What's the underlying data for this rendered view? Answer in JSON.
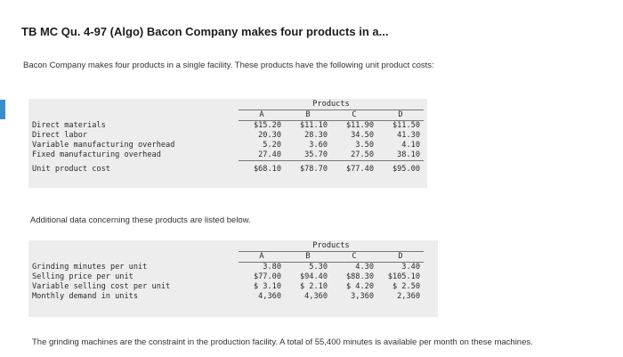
{
  "title": "TB MC Qu. 4-97 (Algo) Bacon Company makes four products in a...",
  "intro": "Bacon Company makes four products in a single facility. These products have the following unit product costs:",
  "table1": {
    "group_header": "Products",
    "columns": [
      "A",
      "B",
      "C",
      "D"
    ],
    "rows": [
      {
        "label": "Direct materials",
        "values": [
          "$15.20",
          "$11.10",
          "$11.90",
          "$11.50"
        ]
      },
      {
        "label": "Direct labor",
        "values": [
          "20.30",
          "28.30",
          "34.50",
          "41.30"
        ]
      },
      {
        "label": "Variable manufacturing overhead",
        "values": [
          "5.20",
          "3.60",
          "3.50",
          "4.10"
        ]
      },
      {
        "label": "Fixed manufacturing overhead",
        "values": [
          "27.40",
          "35.70",
          "27.50",
          "38.10"
        ]
      },
      {
        "label": "Unit product cost",
        "values": [
          "$68.10",
          "$78.70",
          "$77.40",
          "$95.00"
        ]
      }
    ]
  },
  "additional": "Additional data concerning these products are listed below.",
  "table2": {
    "group_header": "Products",
    "columns": [
      "A",
      "B",
      "C",
      "D"
    ],
    "rows": [
      {
        "label": "Grinding minutes per unit",
        "values": [
          "3.80",
          "5.30",
          "4.30",
          "3.40"
        ]
      },
      {
        "label": "Selling price per unit",
        "values": [
          "$77.00",
          "$94.40",
          "$88.30",
          "$105.10"
        ]
      },
      {
        "label": "Variable selling cost per unit",
        "values": [
          "$ 3.10",
          "$ 2.10",
          "$ 4.20",
          "$  2.50"
        ]
      },
      {
        "label": "Monthly demand in units",
        "values": [
          "4,360",
          "4,360",
          "3,360",
          "2,360"
        ]
      }
    ]
  },
  "note": "The grinding machines are the constraint in the production facility. A total of 55,400 minutes is available per month on these machines."
}
